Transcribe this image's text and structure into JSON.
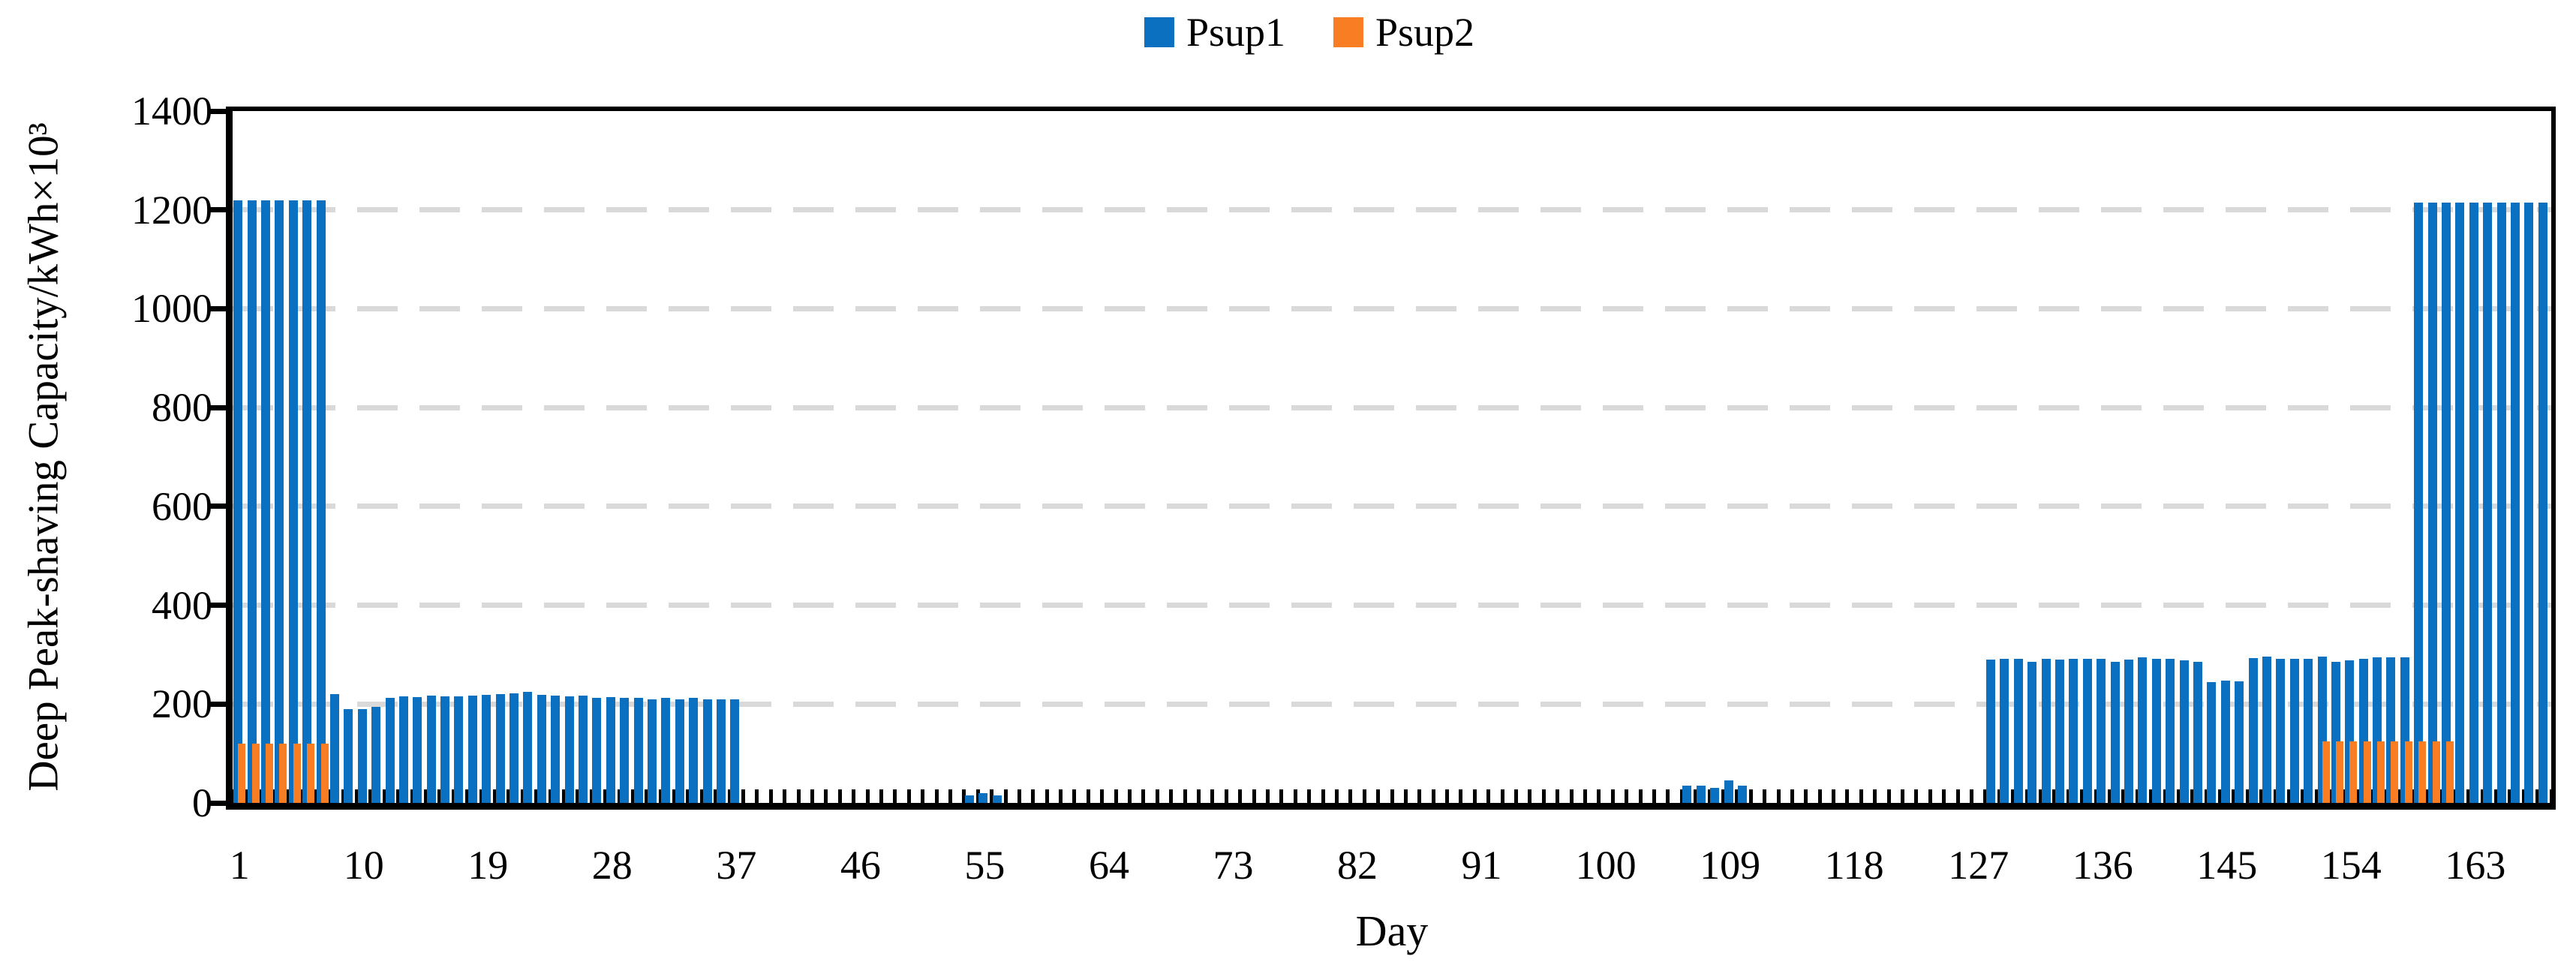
{
  "legend": {
    "items": [
      {
        "label": "Psup1",
        "swatch": "blue-square-icon"
      },
      {
        "label": "Psup2",
        "swatch": "orange-square-icon"
      }
    ]
  },
  "chart_data": {
    "type": "bar",
    "title": "",
    "xlabel": "Day",
    "ylabel": "Deep Peak-shaving Capacity/kWh×10³",
    "ylim": [
      0,
      1400
    ],
    "yticks": [
      0,
      200,
      400,
      600,
      800,
      1000,
      1200,
      1400
    ],
    "xticks": [
      1,
      10,
      19,
      28,
      37,
      46,
      55,
      64,
      73,
      82,
      91,
      100,
      109,
      118,
      127,
      136,
      145,
      154,
      163
    ],
    "days_total": 168,
    "grid": "dashed-horizontal",
    "legend_position": "top-center",
    "gridline_color": "#d9d9d9",
    "series": [
      {
        "name": "Psup1",
        "color": "#0b70c0",
        "values": [
          1220,
          1220,
          1220,
          1220,
          1220,
          1220,
          1220,
          220,
          190,
          190,
          195,
          212,
          215,
          214,
          217,
          215,
          215,
          217,
          218,
          220,
          222,
          224,
          218,
          217,
          215,
          217,
          212,
          214,
          212,
          212,
          210,
          212,
          210,
          212,
          210,
          210,
          210,
          0,
          0,
          0,
          0,
          0,
          0,
          0,
          0,
          0,
          0,
          0,
          0,
          0,
          0,
          0,
          0,
          15,
          20,
          15,
          0,
          0,
          0,
          0,
          0,
          0,
          0,
          0,
          0,
          0,
          0,
          0,
          0,
          0,
          0,
          0,
          0,
          0,
          0,
          0,
          0,
          0,
          0,
          0,
          0,
          0,
          0,
          0,
          0,
          0,
          0,
          0,
          0,
          0,
          0,
          0,
          0,
          0,
          0,
          0,
          0,
          0,
          0,
          0,
          0,
          0,
          0,
          0,
          0,
          35,
          35,
          30,
          45,
          35,
          0,
          0,
          0,
          0,
          0,
          0,
          0,
          0,
          0,
          0,
          0,
          0,
          0,
          0,
          0,
          0,
          0,
          290,
          292,
          292,
          285,
          292,
          290,
          292,
          292,
          291,
          285,
          290,
          295,
          292,
          291,
          288,
          285,
          245,
          248,
          246,
          293,
          296,
          292,
          292,
          292,
          296,
          286,
          288,
          292,
          294,
          294,
          294,
          1215,
          1215,
          1215,
          1215,
          1215,
          1215,
          1215,
          1215,
          1215,
          1215
        ]
      },
      {
        "name": "Psup2",
        "color": "#f97d23",
        "values": [
          120,
          120,
          120,
          120,
          120,
          120,
          120,
          0,
          0,
          0,
          0,
          0,
          0,
          0,
          0,
          0,
          0,
          0,
          0,
          0,
          0,
          0,
          0,
          0,
          0,
          0,
          0,
          0,
          0,
          0,
          0,
          0,
          0,
          0,
          0,
          0,
          0,
          0,
          0,
          0,
          0,
          0,
          0,
          0,
          0,
          0,
          0,
          0,
          0,
          0,
          0,
          0,
          0,
          0,
          0,
          0,
          0,
          0,
          0,
          0,
          0,
          0,
          0,
          0,
          0,
          0,
          0,
          0,
          0,
          0,
          0,
          0,
          0,
          0,
          0,
          0,
          0,
          0,
          0,
          0,
          0,
          0,
          0,
          0,
          0,
          0,
          0,
          0,
          0,
          0,
          0,
          0,
          0,
          0,
          0,
          0,
          0,
          0,
          0,
          0,
          0,
          0,
          0,
          0,
          0,
          0,
          0,
          0,
          0,
          0,
          0,
          0,
          0,
          0,
          0,
          0,
          0,
          0,
          0,
          0,
          0,
          0,
          0,
          0,
          0,
          0,
          0,
          0,
          0,
          0,
          0,
          0,
          0,
          0,
          0,
          0,
          0,
          0,
          0,
          0,
          0,
          0,
          0,
          0,
          0,
          0,
          0,
          0,
          0,
          0,
          0,
          125,
          125,
          125,
          125,
          125,
          125,
          125,
          125,
          125,
          125
        ]
      }
    ]
  }
}
